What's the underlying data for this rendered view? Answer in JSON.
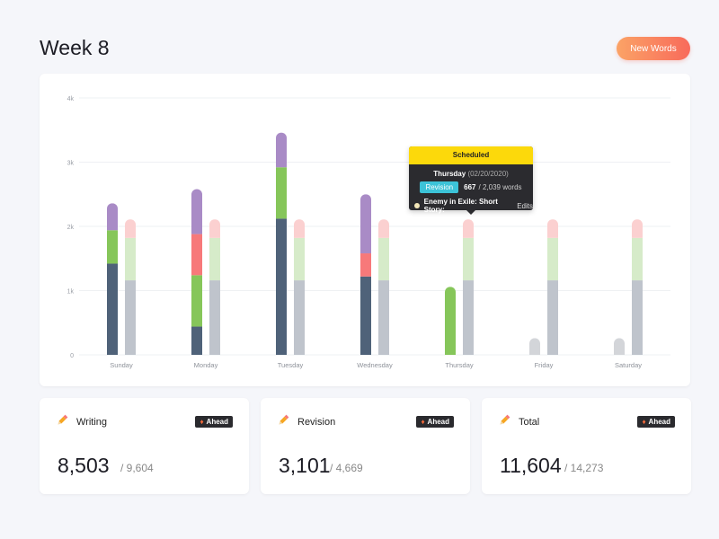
{
  "header": {
    "title": "Week 8",
    "new_words_label": "New Words"
  },
  "colors": {
    "writing": "#86c65a",
    "revision_base": "#4f6279",
    "purple": "#a98bc6",
    "red": "#f7797a",
    "goal_base": "#bfc4cc",
    "goal_green": "#d6ebc9",
    "goal_pink": "#fbd0d0",
    "future_gray": "#d3d5d9",
    "accent_orange": "#f86a5b",
    "tooltip_yellow": "#fcd90b",
    "badge_cyan": "#3cc3d8"
  },
  "chart_data": {
    "type": "bar",
    "categories": [
      "Sunday",
      "Monday",
      "Tuesday",
      "Wednesday",
      "Thursday",
      "Friday",
      "Saturday"
    ],
    "y_ticks": [
      "0",
      "1k",
      "2k",
      "3k",
      "4k"
    ],
    "ylim": [
      0,
      4000
    ],
    "grid": true,
    "actual": [
      {
        "segments": [
          {
            "color": "#4f6279",
            "value": 1420
          },
          {
            "color": "#86c65a",
            "value": 520
          },
          {
            "color": "#a98bc6",
            "value": 420
          }
        ]
      },
      {
        "segments": [
          {
            "color": "#4f6279",
            "value": 440
          },
          {
            "color": "#86c65a",
            "value": 800
          },
          {
            "color": "#f7797a",
            "value": 640
          },
          {
            "color": "#a98bc6",
            "value": 700
          }
        ]
      },
      {
        "segments": [
          {
            "color": "#4f6279",
            "value": 2120
          },
          {
            "color": "#86c65a",
            "value": 800
          },
          {
            "color": "#a98bc6",
            "value": 540
          }
        ]
      },
      {
        "segments": [
          {
            "color": "#4f6279",
            "value": 1220
          },
          {
            "color": "#f7797a",
            "value": 360
          },
          {
            "color": "#a98bc6",
            "value": 920
          }
        ]
      },
      {
        "segments": [
          {
            "color": "#86c65a",
            "value": 1060
          }
        ]
      },
      {
        "segments": [
          {
            "color": "#d3d5d9",
            "value": 260
          }
        ]
      },
      {
        "segments": [
          {
            "color": "#d3d5d9",
            "value": 260
          }
        ]
      }
    ],
    "goal": [
      {
        "segments": [
          {
            "color": "#bfc4cc",
            "value": 1160
          },
          {
            "color": "#d6ebc9",
            "value": 660
          },
          {
            "color": "#fbd0d0",
            "value": 290
          }
        ]
      },
      {
        "segments": [
          {
            "color": "#bfc4cc",
            "value": 1160
          },
          {
            "color": "#d6ebc9",
            "value": 660
          },
          {
            "color": "#fbd0d0",
            "value": 290
          }
        ]
      },
      {
        "segments": [
          {
            "color": "#bfc4cc",
            "value": 1160
          },
          {
            "color": "#d6ebc9",
            "value": 660
          },
          {
            "color": "#fbd0d0",
            "value": 290
          }
        ]
      },
      {
        "segments": [
          {
            "color": "#bfc4cc",
            "value": 1160
          },
          {
            "color": "#d6ebc9",
            "value": 660
          },
          {
            "color": "#fbd0d0",
            "value": 290
          }
        ]
      },
      {
        "segments": [
          {
            "color": "#bfc4cc",
            "value": 1160
          },
          {
            "color": "#d6ebc9",
            "value": 660
          },
          {
            "color": "#fbd0d0",
            "value": 290
          }
        ]
      },
      {
        "segments": [
          {
            "color": "#bfc4cc",
            "value": 1160
          },
          {
            "color": "#d6ebc9",
            "value": 660
          },
          {
            "color": "#fbd0d0",
            "value": 290
          }
        ]
      },
      {
        "segments": [
          {
            "color": "#bfc4cc",
            "value": 1160
          },
          {
            "color": "#d6ebc9",
            "value": 660
          },
          {
            "color": "#fbd0d0",
            "value": 290
          }
        ]
      }
    ]
  },
  "tooltip": {
    "title": "Scheduled",
    "day": "Thursday",
    "date": "(02/20/2020)",
    "badge": "Revision",
    "count": "667",
    "total": "/ 2,039 words",
    "project_name": "Enemy in Exile: Short Story:",
    "project_type": "Edits"
  },
  "stats": [
    {
      "label": "Writing",
      "badge": "Ahead",
      "value": "8,503",
      "total": "/ 9,604",
      "icon": "pencil-icon"
    },
    {
      "label": "Revision",
      "badge": "Ahead",
      "value": "3,101",
      "total": "/ 4,669",
      "icon": "pencil-icon"
    },
    {
      "label": "Total",
      "badge": "Ahead",
      "value": "11,604",
      "total": "/ 14,273",
      "icon": "pencil-icon"
    }
  ]
}
